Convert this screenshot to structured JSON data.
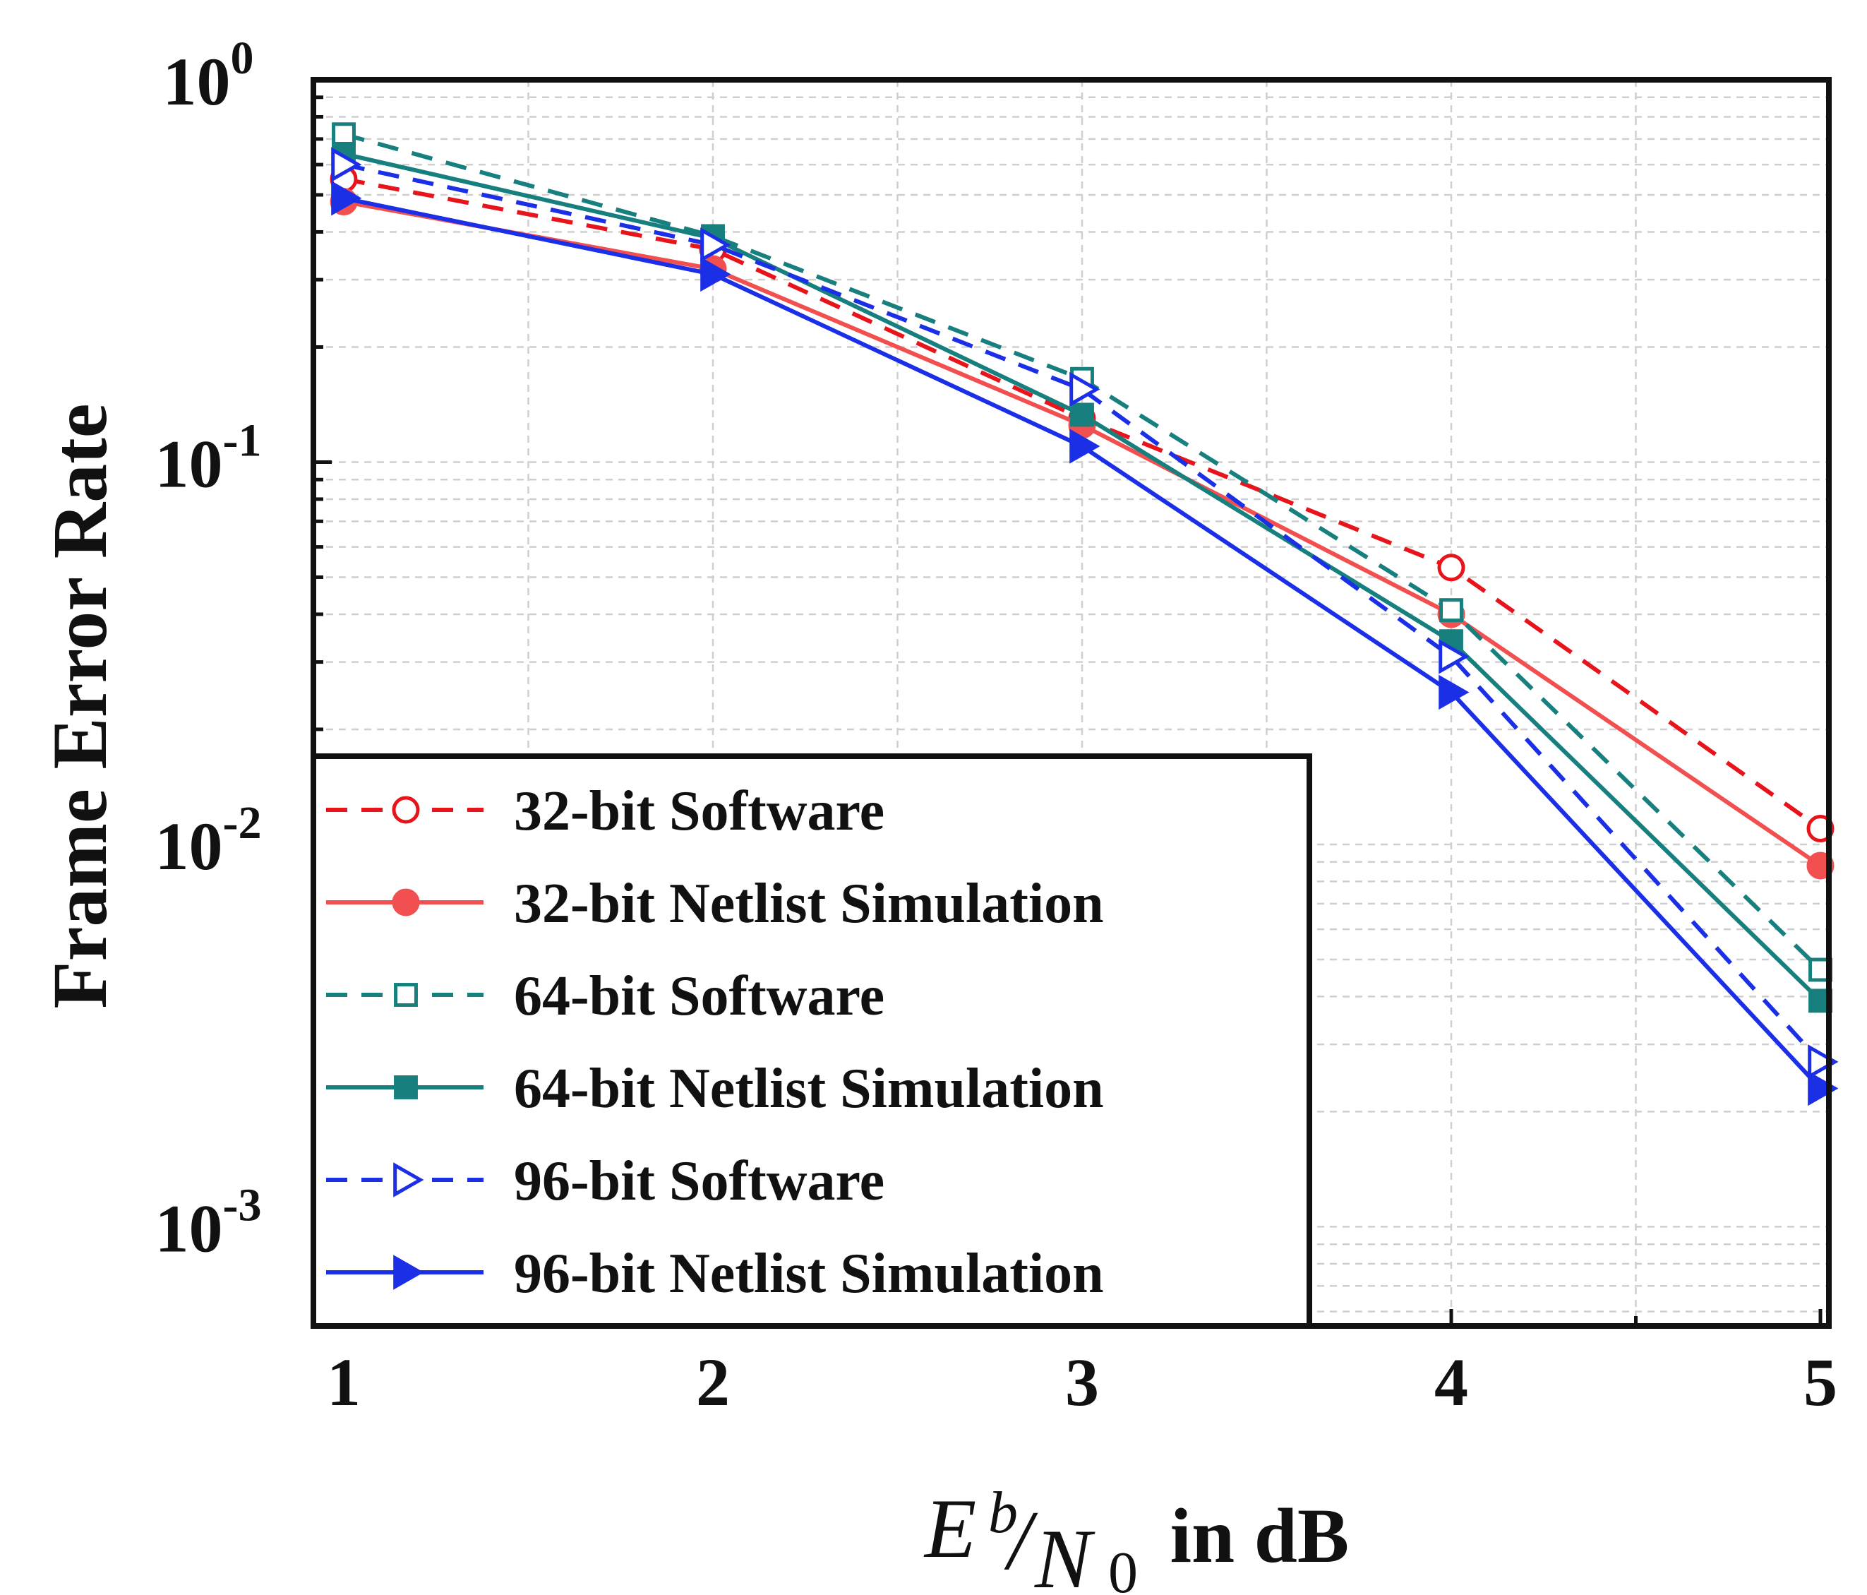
{
  "chart_data": {
    "type": "line",
    "x_scale": "linear",
    "y_scale": "log",
    "x": [
      1,
      2,
      3,
      4,
      5
    ],
    "xlim": [
      0.92,
      5.03
    ],
    "ylim": [
      0.00055,
      1.0
    ],
    "x_ticks": [
      1,
      2,
      3,
      4,
      5
    ],
    "x_tick_labels": [
      "1",
      "2",
      "3",
      "4",
      "5"
    ],
    "y_ticks": [
      {
        "value": 1.0,
        "base": "10",
        "exp": "0"
      },
      {
        "value": 0.1,
        "base": "10",
        "exp": "-1"
      },
      {
        "value": 0.01,
        "base": "10",
        "exp": "-2"
      },
      {
        "value": 0.001,
        "base": "10",
        "exp": "-3"
      }
    ],
    "ylabel": "Frame Error Rate",
    "xlabel": {
      "E": "E",
      "b": "b",
      "slash": "/",
      "N": "N",
      "zero": "0",
      "suffix": " in dB"
    },
    "grid": true,
    "legend_position": "lower-left",
    "series": [
      {
        "name": "32-bit Software",
        "color": "#e8141c",
        "dash": true,
        "marker": "circle",
        "filled": false,
        "values": [
          0.55,
          0.36,
          0.13,
          0.053,
          0.011
        ]
      },
      {
        "name": "32-bit Netlist Simulation",
        "color": "#f25050",
        "dash": false,
        "marker": "circle",
        "filled": true,
        "values": [
          0.48,
          0.32,
          0.125,
          0.04,
          0.0088
        ]
      },
      {
        "name": "64-bit Software",
        "color": "#17807e",
        "dash": true,
        "marker": "square",
        "filled": false,
        "values": [
          0.72,
          0.39,
          0.165,
          0.041,
          0.0047
        ]
      },
      {
        "name": "64-bit Netlist Simulation",
        "color": "#17807e",
        "dash": false,
        "marker": "square",
        "filled": true,
        "values": [
          0.64,
          0.385,
          0.133,
          0.034,
          0.0039
        ]
      },
      {
        "name": "96-bit Software",
        "color": "#1a2fe6",
        "dash": true,
        "marker": "triangle-right",
        "filled": false,
        "values": [
          0.6,
          0.37,
          0.155,
          0.031,
          0.0027
        ]
      },
      {
        "name": "96-bit Netlist Simulation",
        "color": "#1a2fe6",
        "dash": false,
        "marker": "triangle-right",
        "filled": true,
        "values": [
          0.49,
          0.31,
          0.11,
          0.025,
          0.0023
        ]
      }
    ]
  }
}
